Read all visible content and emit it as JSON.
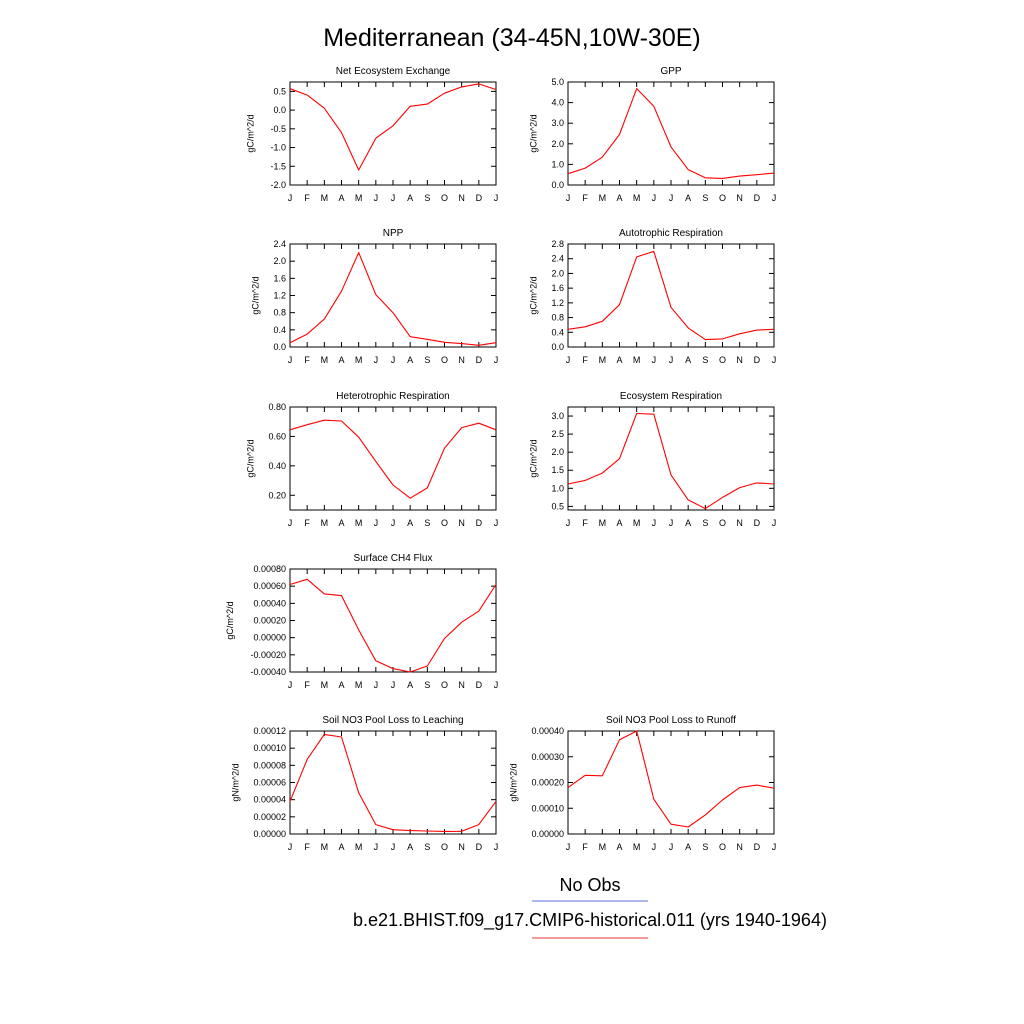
{
  "title": "Mediterranean (34-45N,10W-30E)",
  "legend": {
    "obs_label": "No Obs",
    "obs_color": "#5b6ee1",
    "model_label": "b.e21.BHIST.f09_g17.CMIP6-historical.011 (yrs 1940-1964)",
    "model_color": "#ee3333"
  },
  "line_color": "#ff0000",
  "chart_data": [
    {
      "type": "line",
      "title": "Net Ecosystem Exchange",
      "ylabel": "gC/m^2/d",
      "categories": [
        "J",
        "F",
        "M",
        "A",
        "M",
        "J",
        "J",
        "A",
        "S",
        "O",
        "N",
        "D",
        "J"
      ],
      "ylim": [
        -2.0,
        0.75
      ],
      "yticks": [
        "0.5",
        "0.0",
        "-0.5",
        "-1.0",
        "-1.5",
        "-2.0"
      ],
      "values": [
        0.57,
        0.4,
        0.05,
        -0.6,
        -1.6,
        -0.75,
        -0.42,
        0.1,
        0.16,
        0.45,
        0.62,
        0.7,
        0.55
      ]
    },
    {
      "type": "line",
      "title": "GPP",
      "ylabel": "gC/m^2/d",
      "categories": [
        "J",
        "F",
        "M",
        "A",
        "M",
        "J",
        "J",
        "A",
        "S",
        "O",
        "N",
        "D",
        "J"
      ],
      "ylim": [
        0.0,
        5.0
      ],
      "yticks": [
        "5.0",
        "4.0",
        "3.0",
        "2.0",
        "1.0",
        "0.0"
      ],
      "values": [
        0.55,
        0.82,
        1.35,
        2.45,
        4.68,
        3.82,
        1.85,
        0.75,
        0.35,
        0.32,
        0.43,
        0.5,
        0.58
      ]
    },
    {
      "type": "line",
      "title": "NPP",
      "ylabel": "gC/m^2/d",
      "categories": [
        "J",
        "F",
        "M",
        "A",
        "M",
        "J",
        "J",
        "A",
        "S",
        "O",
        "N",
        "D",
        "J"
      ],
      "ylim": [
        0.0,
        2.4
      ],
      "yticks": [
        "2.4",
        "2.0",
        "1.6",
        "1.2",
        "0.8",
        "0.4",
        "0.0"
      ],
      "values": [
        0.1,
        0.3,
        0.65,
        1.3,
        2.2,
        1.22,
        0.8,
        0.24,
        0.18,
        0.11,
        0.08,
        0.04,
        0.1
      ]
    },
    {
      "type": "line",
      "title": "Autotrophic Respiration",
      "ylabel": "gC/m^2/d",
      "categories": [
        "J",
        "F",
        "M",
        "A",
        "M",
        "J",
        "J",
        "A",
        "S",
        "O",
        "N",
        "D",
        "J"
      ],
      "ylim": [
        0.0,
        2.8
      ],
      "yticks": [
        "2.8",
        "2.4",
        "2.0",
        "1.6",
        "1.2",
        "0.8",
        "0.4",
        "0.0"
      ],
      "values": [
        0.48,
        0.55,
        0.7,
        1.15,
        2.45,
        2.6,
        1.08,
        0.52,
        0.2,
        0.22,
        0.36,
        0.46,
        0.48
      ]
    },
    {
      "type": "line",
      "title": "Heterotrophic Respiration",
      "ylabel": "gC/m^2/d",
      "categories": [
        "J",
        "F",
        "M",
        "A",
        "M",
        "J",
        "J",
        "A",
        "S",
        "O",
        "N",
        "D",
        "J"
      ],
      "ylim": [
        0.1,
        0.8
      ],
      "yticks": [
        "0.80",
        "0.60",
        "0.40",
        "0.20"
      ],
      "values": [
        0.645,
        0.68,
        0.71,
        0.705,
        0.595,
        0.43,
        0.27,
        0.18,
        0.25,
        0.52,
        0.66,
        0.69,
        0.645
      ]
    },
    {
      "type": "line",
      "title": "Ecosystem Respiration",
      "ylabel": "gC/m^2/d",
      "categories": [
        "J",
        "F",
        "M",
        "A",
        "M",
        "J",
        "J",
        "A",
        "S",
        "O",
        "N",
        "D",
        "J"
      ],
      "ylim": [
        0.4,
        3.25
      ],
      "yticks": [
        "3.0",
        "2.5",
        "2.0",
        "1.5",
        "1.0",
        "0.5"
      ],
      "values": [
        1.12,
        1.22,
        1.42,
        1.82,
        3.07,
        3.05,
        1.37,
        0.68,
        0.44,
        0.75,
        1.02,
        1.15,
        1.12
      ]
    },
    {
      "type": "line",
      "title": "Surface CH4 Flux",
      "ylabel": "gC/m^2/d",
      "categories": [
        "J",
        "F",
        "M",
        "A",
        "M",
        "J",
        "J",
        "A",
        "S",
        "O",
        "N",
        "D",
        "J"
      ],
      "ylim": [
        -0.0004,
        0.0008
      ],
      "yticks": [
        "0.00080",
        "0.00060",
        "0.00040",
        "0.00020",
        "0.00000",
        "-0.00020",
        "-0.00040"
      ],
      "values": [
        0.00062,
        0.00068,
        0.00051,
        0.00049,
        9e-05,
        -0.00027,
        -0.00036,
        -0.0004,
        -0.00033,
        -1e-05,
        0.00018,
        0.00031,
        0.00062
      ]
    },
    {
      "type": "line",
      "title": "Soil NO3 Pool Loss to Leaching",
      "ylabel": "gN/m^2/d",
      "categories": [
        "J",
        "F",
        "M",
        "A",
        "M",
        "J",
        "J",
        "A",
        "S",
        "O",
        "N",
        "D",
        "J"
      ],
      "ylim": [
        0.0,
        0.00012
      ],
      "yticks": [
        "0.00012",
        "0.00010",
        "0.00008",
        "0.00006",
        "0.00004",
        "0.00002",
        "0.00000"
      ],
      "values": [
        3.8e-05,
        8.7e-05,
        0.000116,
        0.000113,
        4.8e-05,
        1.1e-05,
        5e-06,
        4e-06,
        3.5e-06,
        3e-06,
        3.2e-06,
        1.1e-05,
        3.8e-05
      ]
    },
    {
      "type": "line",
      "title": "Soil NO3 Pool Loss to Runoff",
      "ylabel": "gN/m^2/d",
      "categories": [
        "J",
        "F",
        "M",
        "A",
        "M",
        "J",
        "J",
        "A",
        "S",
        "O",
        "N",
        "D",
        "J"
      ],
      "ylim": [
        0.0,
        0.0004
      ],
      "yticks": [
        "0.00040",
        "0.00030",
        "0.00020",
        "0.00010",
        "0.00000"
      ],
      "values": [
        0.00018,
        0.000228,
        0.000226,
        0.000366,
        0.0004,
        0.000135,
        3.8e-05,
        2.7e-05,
        7.4e-05,
        0.000132,
        0.00018,
        0.00019,
        0.000178
      ]
    }
  ]
}
